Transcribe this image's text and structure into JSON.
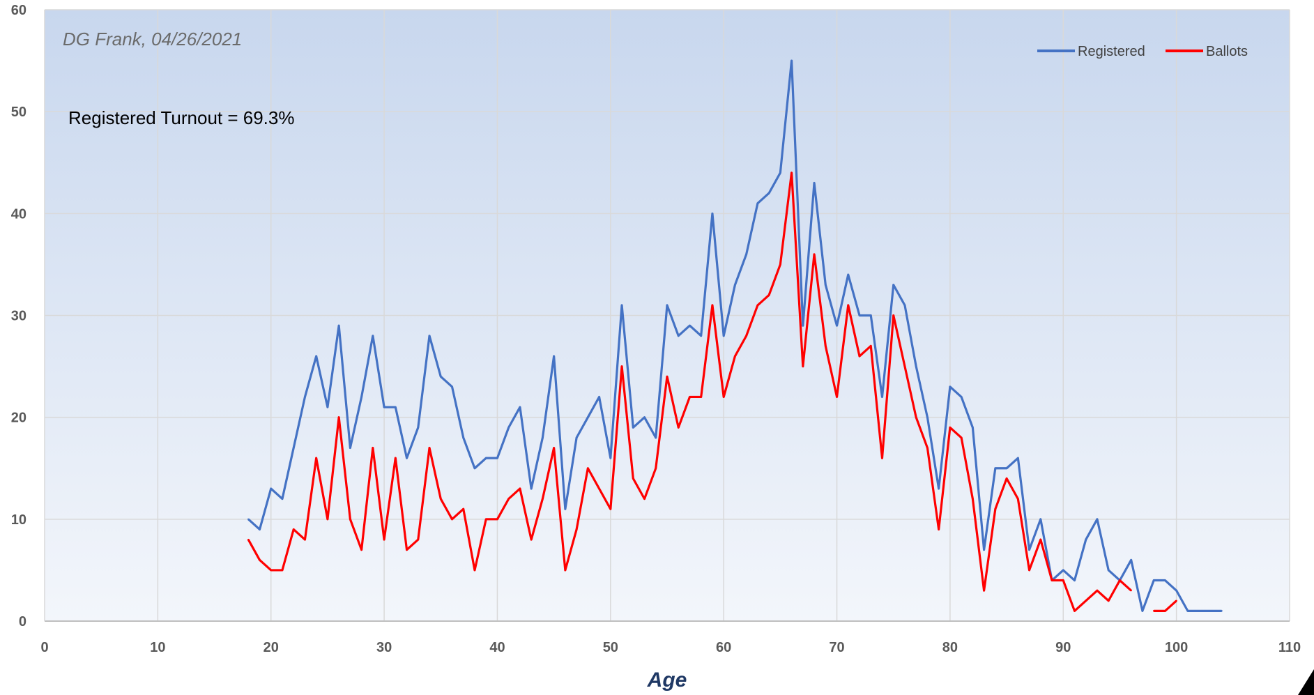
{
  "chart_data": {
    "type": "line",
    "title": "",
    "xlabel": "Age",
    "ylabel": "",
    "xlim": [
      0,
      110
    ],
    "ylim": [
      0,
      60
    ],
    "xticks": [
      0,
      10,
      20,
      30,
      40,
      50,
      60,
      70,
      80,
      90,
      100,
      110
    ],
    "yticks": [
      0,
      10,
      20,
      30,
      40,
      50,
      60
    ],
    "grid": true,
    "legend_position": "top-right",
    "annotations": {
      "credit": "DG Frank, 04/26/2021",
      "turnout": "Registered Turnout = 69.3%"
    },
    "series": [
      {
        "name": "Registered",
        "color": "#4472C4",
        "x": [
          18,
          19,
          20,
          21,
          22,
          23,
          24,
          25,
          26,
          27,
          28,
          29,
          30,
          31,
          32,
          33,
          34,
          35,
          36,
          37,
          38,
          39,
          40,
          41,
          42,
          43,
          44,
          45,
          46,
          47,
          48,
          49,
          50,
          51,
          52,
          53,
          54,
          55,
          56,
          57,
          58,
          59,
          60,
          61,
          62,
          63,
          64,
          65,
          66,
          67,
          68,
          69,
          70,
          71,
          72,
          73,
          74,
          75,
          76,
          77,
          78,
          79,
          80,
          81,
          82,
          83,
          84,
          85,
          86,
          87,
          88,
          89,
          90,
          91,
          92,
          93,
          94,
          95,
          96,
          97,
          98,
          99,
          100,
          101,
          102,
          103,
          104
        ],
        "y": [
          10,
          9,
          13,
          12,
          17,
          22,
          26,
          21,
          29,
          17,
          22,
          28,
          21,
          21,
          16,
          19,
          28,
          24,
          23,
          18,
          15,
          16,
          16,
          19,
          21,
          13,
          18,
          26,
          11,
          18,
          20,
          22,
          16,
          31,
          19,
          20,
          18,
          31,
          28,
          29,
          28,
          40,
          28,
          33,
          36,
          41,
          42,
          44,
          55,
          29,
          43,
          33,
          29,
          34,
          30,
          30,
          22,
          33,
          31,
          25,
          20,
          13,
          23,
          22,
          19,
          7,
          15,
          15,
          16,
          7,
          10,
          4,
          5,
          4,
          8,
          10,
          5,
          4,
          6,
          1,
          4,
          4,
          3,
          1,
          1,
          1,
          1
        ]
      },
      {
        "name": "Ballots",
        "color": "#FF0000",
        "x": [
          18,
          19,
          20,
          21,
          22,
          23,
          24,
          25,
          26,
          27,
          28,
          29,
          30,
          31,
          32,
          33,
          34,
          35,
          36,
          37,
          38,
          39,
          40,
          41,
          42,
          43,
          44,
          45,
          46,
          47,
          48,
          49,
          50,
          51,
          52,
          53,
          54,
          55,
          56,
          57,
          58,
          59,
          60,
          61,
          62,
          63,
          64,
          65,
          66,
          67,
          68,
          69,
          70,
          71,
          72,
          73,
          74,
          75,
          76,
          77,
          78,
          79,
          80,
          81,
          82,
          83,
          84,
          85,
          86,
          87,
          88,
          89,
          90,
          91,
          92,
          93,
          94,
          95,
          96,
          97,
          98,
          99,
          100
        ],
        "y": [
          8,
          6,
          5,
          5,
          9,
          8,
          16,
          10,
          20,
          10,
          7,
          17,
          8,
          16,
          7,
          8,
          17,
          12,
          10,
          11,
          5,
          10,
          10,
          12,
          13,
          8,
          12,
          17,
          5,
          9,
          15,
          13,
          11,
          25,
          14,
          12,
          15,
          24,
          19,
          22,
          22,
          31,
          22,
          26,
          28,
          31,
          32,
          35,
          44,
          25,
          36,
          27,
          22,
          31,
          26,
          27,
          16,
          30,
          25,
          20,
          17,
          9,
          19,
          18,
          12,
          3,
          11,
          14,
          12,
          5,
          8,
          4,
          4,
          1,
          2,
          3,
          2,
          4,
          3,
          null,
          1,
          1,
          2
        ]
      }
    ]
  }
}
